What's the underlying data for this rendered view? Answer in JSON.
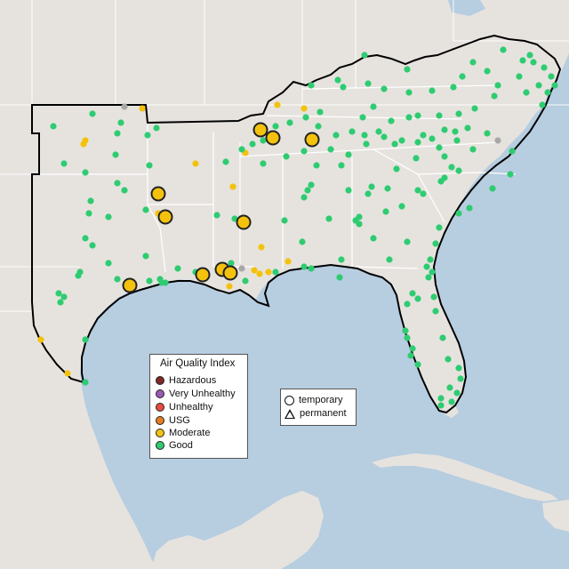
{
  "map": {
    "colors": {
      "land": "#e6e3df",
      "land_alt": "#efedea",
      "water": "#b7cde0",
      "water_deep": "#a9c3da",
      "state_line": "#ffffff",
      "region_border": "#000000",
      "good": "#2ecc71",
      "moderate": "#f4c20d",
      "no_data": "#a8a8a8"
    }
  },
  "legend_aqi": {
    "title": "Air Quality Index",
    "items": [
      {
        "label": "Hazardous",
        "color": "#7e2a2a"
      },
      {
        "label": "Very Unhealthy",
        "color": "#9b59b6"
      },
      {
        "label": "Unhealthy",
        "color": "#e74c3c"
      },
      {
        "label": "USG",
        "color": "#e67e22"
      },
      {
        "label": "Moderate",
        "color": "#f1c40f"
      },
      {
        "label": "Good",
        "color": "#2ecc71"
      }
    ]
  },
  "legend_type": {
    "items": [
      {
        "label": "temporary",
        "shape": "circle"
      },
      {
        "label": "permanent",
        "shape": "triangle"
      }
    ]
  }
}
